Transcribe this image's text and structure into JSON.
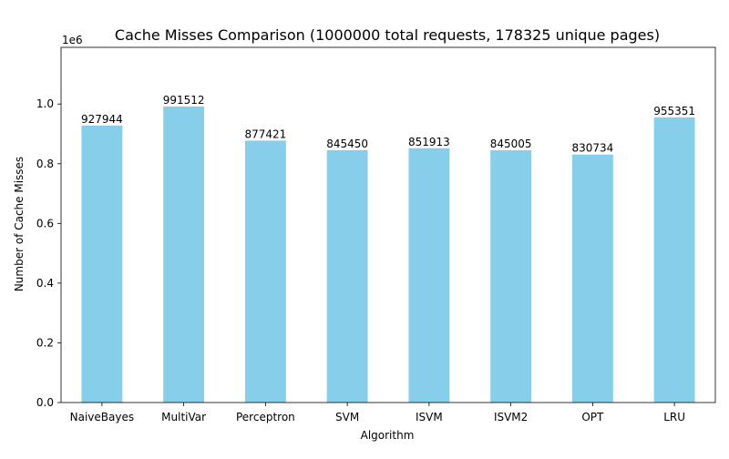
{
  "chart_data": {
    "type": "bar",
    "title": "Cache Misses Comparison (1000000 total requests, 178325 unique pages)",
    "xlabel": "Algorithm",
    "ylabel": "Number of Cache Misses",
    "y_offset_label": "1e6",
    "categories": [
      "NaiveBayes",
      "MultiVar",
      "Perceptron",
      "SVM",
      "ISVM",
      "ISVM2",
      "OPT",
      "LRU"
    ],
    "values": [
      927944,
      991512,
      877421,
      845450,
      851913,
      845005,
      830734,
      955351
    ],
    "data_labels": [
      "927944",
      "991512",
      "877421",
      "845450",
      "851913",
      "845005",
      "830734",
      "955351"
    ],
    "ylim": [
      0,
      1189814
    ],
    "yticks": [
      0,
      200000,
      400000,
      600000,
      800000,
      1000000
    ],
    "ytick_labels": [
      "0.0",
      "0.2",
      "0.4",
      "0.6",
      "0.8",
      "1.0"
    ],
    "bar_color": "#87ceeb",
    "grid": false,
    "legend": "none"
  }
}
